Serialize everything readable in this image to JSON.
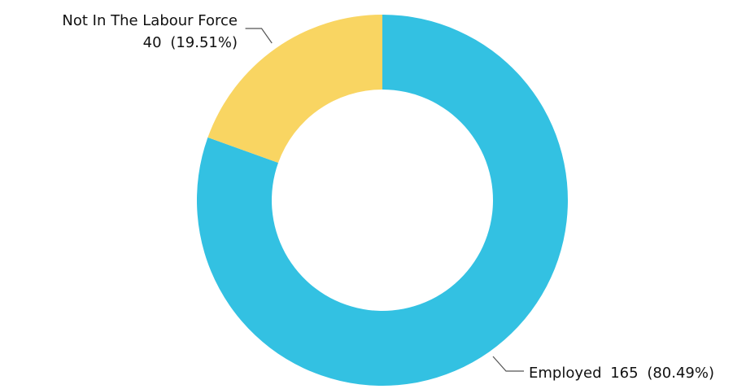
{
  "chart_data": {
    "type": "pie",
    "variant": "donut",
    "title": "",
    "slices": [
      {
        "name": "Employed",
        "value": 165,
        "percent_label": "(80.49%)",
        "color": "#33c1e2"
      },
      {
        "name": "Not In The Labour Force",
        "value": 40,
        "percent_label": "(19.51%)",
        "color": "#f9d562"
      }
    ]
  }
}
